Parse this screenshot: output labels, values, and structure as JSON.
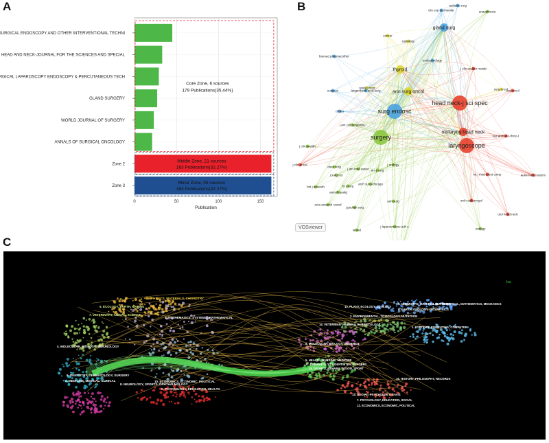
{
  "panels": {
    "a": "A",
    "b": "B",
    "c": "C"
  },
  "chart_data": [
    {
      "type": "bar",
      "orientation": "horizontal",
      "xlabel": "Publication",
      "ylabel": "",
      "xlim": [
        0,
        170
      ],
      "xticks": [
        0,
        50,
        100,
        150
      ],
      "grid": true,
      "categories": [
        "SURGICAL ENDOSCOPY AND OTHER INTERVENTIONAL TECHNI",
        "HEAD AND NECK-JOURNAL FOR THE SCIENCES AND SPECIAL",
        "SURGICAL LAPAROSCOPY ENDOSCOPY & PERCUTANEOUS TECH",
        "GLAND SURGERY",
        "WORLD JOURNAL OF SURGERY",
        "ANNALS OF SURGICAL ONCOLOGY",
        "Zone 2",
        "Zone 3"
      ],
      "values": [
        45,
        33,
        29,
        27,
        23,
        21,
        163,
        163
      ],
      "bar_colors": [
        "#4db848",
        "#4db848",
        "#4db848",
        "#4db848",
        "#4db848",
        "#4db848",
        "#e8212b",
        "#1f4f91"
      ],
      "annotations": [
        {
          "zone": "core",
          "line1": "Core Zone, 6 sources",
          "line2": "179 Publications(35.44%)"
        },
        {
          "zone": "middle",
          "line1": "Middle Zone, 21 sources",
          "line2": "163  Publications(32.27%)"
        },
        {
          "zone": "minor",
          "line1": "Minor Zone, 93 sources",
          "line2": "163 Publications(32.27%)"
        }
      ]
    },
    {
      "type": "network",
      "software": "VOSviewer",
      "colors": {
        "red": "#e8412e",
        "green": "#8cc63f",
        "blue": "#4aa3df",
        "yellow": "#e0d82e"
      },
      "nodes": [
        {
          "label": "surg endosc",
          "cluster": "blue",
          "size": "large"
        },
        {
          "label": "surgery",
          "cluster": "green",
          "size": "large"
        },
        {
          "label": "laryngoscope",
          "cluster": "red",
          "size": "large"
        },
        {
          "label": "head neck-j sci spec",
          "cluster": "red",
          "size": "large"
        },
        {
          "label": "otolaryng head neck",
          "cluster": "red",
          "size": "medium"
        },
        {
          "label": "ann surg oncol",
          "cluster": "yellow",
          "size": "medium"
        },
        {
          "label": "thyroid",
          "cluster": "yellow",
          "size": "medium"
        },
        {
          "label": "gland surg",
          "cluster": "blue",
          "size": "medium"
        },
        {
          "label": "j am coll surgeons",
          "cluster": "green",
          "size": "small"
        },
        {
          "label": "world j surg",
          "cluster": "yellow",
          "size": "small"
        },
        {
          "label": "endocrinology",
          "cluster": "blue",
          "size": "small"
        },
        {
          "label": "j clin endocr metab",
          "cluster": "red",
          "size": "small"
        },
        {
          "label": "arch otolaryngol",
          "cluster": "red",
          "size": "small"
        },
        {
          "label": "arch surg-chicago",
          "cluster": "green",
          "size": "small"
        },
        {
          "label": "ann surg",
          "cluster": "green",
          "size": "small"
        },
        {
          "label": "am j surg",
          "cluster": "green",
          "size": "small"
        },
        {
          "label": "langenbeck arch surg",
          "cluster": "blue",
          "size": "small"
        },
        {
          "label": "j pediatr surg",
          "cluster": "green",
          "size": "small"
        },
        {
          "label": "oral oncol",
          "cluster": "red",
          "size": "small"
        },
        {
          "label": "eur arch oto-rhino-l",
          "cluster": "red",
          "size": "small"
        },
        {
          "label": "int j med robot comp",
          "cluster": "red",
          "size": "small"
        },
        {
          "label": "j laparoendosc adv s",
          "cluster": "green",
          "size": "small"
        },
        {
          "label": "ann thorac surg",
          "cluster": "green",
          "size": "small"
        },
        {
          "label": "j thorac cardiov sur",
          "cluster": "green",
          "size": "small"
        },
        {
          "label": "br j surg",
          "cluster": "green",
          "size": "small"
        },
        {
          "label": "otol head neck",
          "cluster": "red",
          "size": "small"
        },
        {
          "label": "updates surg",
          "cluster": "blue",
          "size": "small"
        },
        {
          "label": "clin exp otorhinolar",
          "cluster": "blue",
          "size": "small"
        },
        {
          "label": "anaesthesia",
          "cluster": "green",
          "size": "small"
        },
        {
          "label": "surgeon",
          "cluster": "blue",
          "size": "small"
        },
        {
          "label": "biomed pharmacother",
          "cluster": "blue",
          "size": "small"
        },
        {
          "label": "anesth analg",
          "cluster": "green",
          "size": "small"
        },
        {
          "label": "acta anaesth scand",
          "cluster": "green",
          "size": "small"
        },
        {
          "label": "brit j anaesth",
          "cluster": "green",
          "size": "small"
        },
        {
          "label": "j clin oncol",
          "cluster": "red",
          "size": "small"
        },
        {
          "label": "urology",
          "cluster": "green",
          "size": "small"
        },
        {
          "label": "radiology",
          "cluster": "yellow",
          "size": "small"
        },
        {
          "label": "cancer",
          "cluster": "yellow",
          "size": "small"
        },
        {
          "label": "obes surg",
          "cluster": "green",
          "size": "small"
        },
        {
          "label": "j surg res",
          "cluster": "green",
          "size": "small"
        },
        {
          "label": "j am med assoc",
          "cluster": "green",
          "size": "small"
        },
        {
          "label": "j urology",
          "cluster": "green",
          "size": "small"
        },
        {
          "label": "clinics",
          "cluster": "blue",
          "size": "small"
        },
        {
          "label": "auris nasus larynx",
          "cluster": "red",
          "size": "small"
        },
        {
          "label": "surg oncol",
          "cluster": "yellow",
          "size": "small"
        },
        {
          "label": "j clin anesth",
          "cluster": "green",
          "size": "small"
        },
        {
          "label": "lancet",
          "cluster": "green",
          "size": "small"
        }
      ]
    },
    {
      "type": "dual-map overlay",
      "background": "#000000",
      "corner_label": "Ics",
      "citing_labels": [
        {
          "text": "3. PHYSICS, MATERIALS, CHEMISTRY",
          "color": "#f2d14a"
        },
        {
          "text": "5. ECOLOGY, EARTH, MARINE",
          "color": "#d9f08a"
        },
        {
          "text": "7. VETERINARY, ANIMAL, SCIENCE",
          "color": "#d9f08a"
        },
        {
          "text": "1. MATHEMATICS, SYSTEMS, MATHEMATICAL",
          "color": "#ffffff"
        },
        {
          "text": "4. MOLECULAR, BIOLOGY, IMMUNOLOGY",
          "color": "#ffffff"
        },
        {
          "text": "6. DENTISTRY, DERMATOLOGY, SURGERY",
          "color": "#ffffff"
        },
        {
          "text": "2. MEDICINE, MEDICAL, CLINICAL",
          "color": "#ffffff"
        },
        {
          "text": "8. NEUROLOGY, SPORTS, OPHTHALMOLOGY",
          "color": "#ffffff"
        },
        {
          "text": "10. ECONOMICS, ECONOMIC, POLITICAL",
          "color": "#ffffff"
        },
        {
          "text": "9. PSYCHOLOGY, EDUCATION, HEALTH",
          "color": "#ffffff"
        }
      ],
      "cited_labels": [
        {
          "text": "10. PLANT, ECOLOGY, ZOOLOGY",
          "color": "#ffffff"
        },
        {
          "text": "8. CHEMISTRY, MATERIALS, PHYSICS",
          "color": "#ffffff"
        },
        {
          "text": "4. MATHEMATICAL, MATHEMATICS, MECHANICS",
          "color": "#ffffff"
        },
        {
          "text": "6. EARTH, GEOLOGY, GEOPHYSICS",
          "color": "#ffffff"
        },
        {
          "text": "2. ENVIRONMENTAL, TOXICOLOGY, NUTRITION",
          "color": "#ffffff"
        },
        {
          "text": "14. VETERINARY, ANIMAL, PARASITOLOGY",
          "color": "#ffffff"
        },
        {
          "text": "1. SYSTEMS, COMPUTING, COMPUTER",
          "color": "#ffffff"
        },
        {
          "text": "8. MOLECULAR, BIOLOGY, GENETICS",
          "color": "#ffffff"
        },
        {
          "text": "5. HEALTH, NURSING, MEDICINE",
          "color": "#ffffff"
        },
        {
          "text": "11. DERMATOLOGY, DENTISTRY, SURGERY",
          "color": "#ffffff"
        },
        {
          "text": "15. SPORTS, REHABILITATION, SPORT",
          "color": "#ffffff"
        },
        {
          "text": "16. HISTORY, PHILOSOPHY, RECORDS",
          "color": "#ffffff"
        },
        {
          "text": "13. SOCIAL, PSYCHOLOGY, SAVIS",
          "color": "#ffffff"
        },
        {
          "text": "7. PSYCHOLOGY, EDUCATION, SOCIAL",
          "color": "#ffffff"
        },
        {
          "text": "12. ECONOMICS, ECONOMIC, POLITICAL",
          "color": "#ffffff"
        }
      ]
    }
  ]
}
